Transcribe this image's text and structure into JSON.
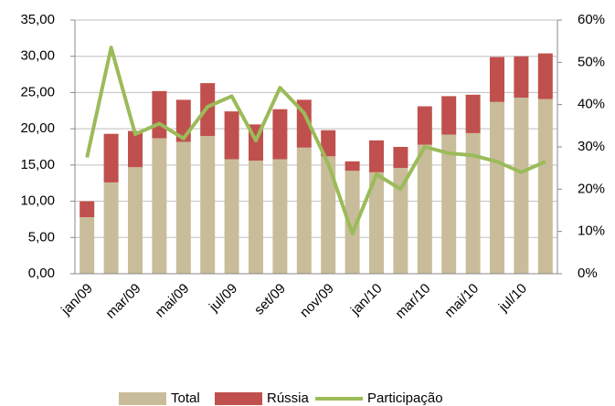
{
  "chart_data": {
    "type": "bar-line",
    "categories": [
      "jan/09",
      null,
      "mar/09",
      null,
      "mai/09",
      null,
      "jul/09",
      null,
      "set/09",
      null,
      "nov/09",
      null,
      "jan/10",
      null,
      "mar/10",
      null,
      "mai/10",
      null,
      "jul/10",
      null
    ],
    "series": [
      {
        "name": "Total",
        "color": "#c9bc9a",
        "type": "bar",
        "values": [
          7.8,
          12.6,
          14.7,
          18.7,
          18.2,
          19.0,
          15.8,
          15.6,
          15.8,
          17.4,
          16.2,
          14.2,
          14.0,
          14.6,
          17.8,
          19.2,
          19.4,
          23.7,
          24.3,
          24.1
        ]
      },
      {
        "name": "Rússia",
        "color": "#c0504d",
        "type": "bar",
        "values": [
          2.2,
          6.7,
          5.0,
          6.5,
          5.8,
          7.3,
          6.6,
          5.0,
          6.9,
          6.6,
          3.6,
          1.3,
          4.4,
          2.9,
          5.3,
          5.3,
          5.3,
          6.2,
          5.7,
          6.3
        ]
      },
      {
        "name": "Participação",
        "color": "#9bbb59",
        "type": "line",
        "axis": "y2",
        "values": [
          27.5,
          53.5,
          33,
          35.5,
          32,
          39.5,
          42,
          31.5,
          44,
          38,
          26,
          9.5,
          23.5,
          20,
          30,
          28.5,
          28,
          26.5,
          24,
          26.5
        ]
      }
    ],
    "ylim": [
      0,
      35
    ],
    "yticks": [
      {
        "value": 0,
        "label": "0,00"
      },
      {
        "value": 5,
        "label": "5,00"
      },
      {
        "value": 10,
        "label": "10,00"
      },
      {
        "value": 15,
        "label": "15,00"
      },
      {
        "value": 20,
        "label": "20,00"
      },
      {
        "value": 25,
        "label": "25,00"
      },
      {
        "value": 30,
        "label": "30,00"
      },
      {
        "value": 35,
        "label": "35,00"
      }
    ],
    "y2lim": [
      0,
      60
    ],
    "y2ticks": [
      {
        "value": 0,
        "label": "0%"
      },
      {
        "value": 10,
        "label": "10%"
      },
      {
        "value": 20,
        "label": "20%"
      },
      {
        "value": 30,
        "label": "30%"
      },
      {
        "value": 40,
        "label": "40%"
      },
      {
        "value": 50,
        "label": "50%"
      },
      {
        "value": 60,
        "label": "60%"
      }
    ],
    "grid": true,
    "legend": "bottom"
  }
}
